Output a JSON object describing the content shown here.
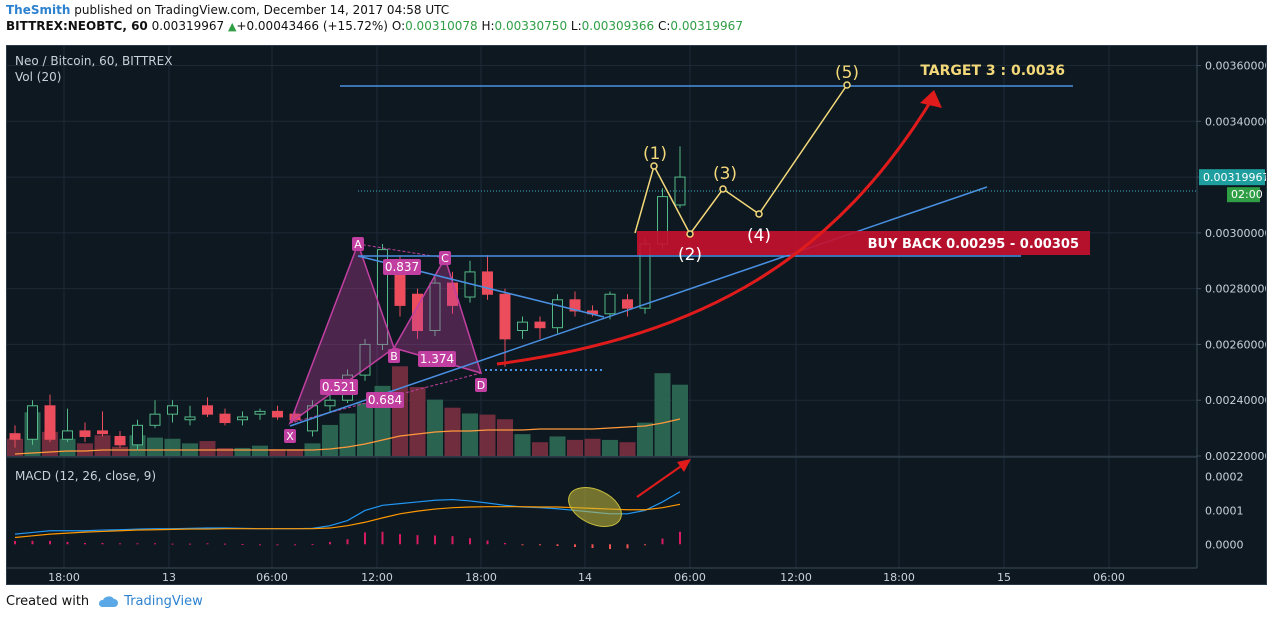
{
  "header": {
    "user": "TheSmith",
    "published": " published on TradingView.com, December 14, 2017 04:58 UTC",
    "symbol": "BITTREX:NEOBTC, 60",
    "last": "0.00319967",
    "change": "+0.00043466 (+15.72%)",
    "o_label": "O:",
    "o": "0.00310078",
    "h_label": "H:",
    "h": "0.00330750",
    "l_label": "L:",
    "l": "0.00309366",
    "c_label": "C:",
    "c": "0.00319967"
  },
  "legend": {
    "title": "Neo / Bitcoin, 60, BITTREX",
    "vol": "Vol (20)",
    "macd": "MACD (12, 26, close, 9)"
  },
  "colors": {
    "background": "#0e1821",
    "up": "#53b987",
    "down": "#eb4d5c",
    "pattern": "#c13fa0",
    "blue_line": "#4a90e2",
    "wave": "#f3d97a",
    "arrow": "#e01b1b",
    "buy_zone": "#c8102e",
    "macd_line": "#2196f3",
    "signal_line": "#ff9800"
  },
  "chart_data": {
    "type": "candlestick",
    "price_axis": [
      "0.00360000",
      "0.00340000",
      "0.00320000",
      "0.00300000",
      "0.00280000",
      "0.00260000",
      "0.00240000",
      "0.00220000"
    ],
    "price_range": [
      0.0022,
      0.00367
    ],
    "current_price_label": "0.00319967",
    "countdown_label": "02:00",
    "time_axis": [
      "18:00",
      "13",
      "06:00",
      "12:00",
      "18:00",
      "14",
      "06:00",
      "12:00",
      "18:00",
      "15",
      "06:00"
    ],
    "candles": [
      {
        "o": 0.00228,
        "h": 0.00231,
        "l": 0.00223,
        "c": 0.00226
      },
      {
        "o": 0.00226,
        "h": 0.0024,
        "l": 0.00224,
        "c": 0.00238
      },
      {
        "o": 0.00238,
        "h": 0.00242,
        "l": 0.00225,
        "c": 0.00226
      },
      {
        "o": 0.00226,
        "h": 0.00237,
        "l": 0.00225,
        "c": 0.00229
      },
      {
        "o": 0.00229,
        "h": 0.00232,
        "l": 0.00225,
        "c": 0.00227
      },
      {
        "o": 0.00229,
        "h": 0.00236,
        "l": 0.00227,
        "c": 0.00228
      },
      {
        "o": 0.00227,
        "h": 0.00229,
        "l": 0.00223,
        "c": 0.00224
      },
      {
        "o": 0.00224,
        "h": 0.00233,
        "l": 0.00222,
        "c": 0.00231
      },
      {
        "o": 0.00231,
        "h": 0.0024,
        "l": 0.0023,
        "c": 0.00235
      },
      {
        "o": 0.00235,
        "h": 0.0024,
        "l": 0.00232,
        "c": 0.00238
      },
      {
        "o": 0.00233,
        "h": 0.00238,
        "l": 0.00231,
        "c": 0.00234
      },
      {
        "o": 0.00238,
        "h": 0.00241,
        "l": 0.00234,
        "c": 0.00235
      },
      {
        "o": 0.00235,
        "h": 0.00237,
        "l": 0.00231,
        "c": 0.00232
      },
      {
        "o": 0.00233,
        "h": 0.00236,
        "l": 0.00231,
        "c": 0.00234
      },
      {
        "o": 0.00235,
        "h": 0.00237,
        "l": 0.00233,
        "c": 0.00236
      },
      {
        "o": 0.00236,
        "h": 0.00238,
        "l": 0.00233,
        "c": 0.00234
      },
      {
        "o": 0.00235,
        "h": 0.00236,
        "l": 0.00232,
        "c": 0.00233
      },
      {
        "o": 0.00229,
        "h": 0.0024,
        "l": 0.00227,
        "c": 0.00238
      },
      {
        "o": 0.00238,
        "h": 0.00247,
        "l": 0.00236,
        "c": 0.0024
      },
      {
        "o": 0.0024,
        "h": 0.00251,
        "l": 0.00239,
        "c": 0.00249
      },
      {
        "o": 0.00249,
        "h": 0.00262,
        "l": 0.00247,
        "c": 0.0026
      },
      {
        "o": 0.0026,
        "h": 0.00296,
        "l": 0.00258,
        "c": 0.00294
      },
      {
        "o": 0.0029,
        "h": 0.00292,
        "l": 0.0027,
        "c": 0.00274
      },
      {
        "o": 0.00278,
        "h": 0.0028,
        "l": 0.00262,
        "c": 0.00265
      },
      {
        "o": 0.00265,
        "h": 0.00284,
        "l": 0.00263,
        "c": 0.00282
      },
      {
        "o": 0.00282,
        "h": 0.00286,
        "l": 0.00271,
        "c": 0.00274
      },
      {
        "o": 0.00277,
        "h": 0.0029,
        "l": 0.00275,
        "c": 0.00286
      },
      {
        "o": 0.00286,
        "h": 0.00292,
        "l": 0.00276,
        "c": 0.00278
      },
      {
        "o": 0.00278,
        "h": 0.0028,
        "l": 0.00252,
        "c": 0.00262
      },
      {
        "o": 0.00265,
        "h": 0.0027,
        "l": 0.00262,
        "c": 0.00268
      },
      {
        "o": 0.00268,
        "h": 0.0027,
        "l": 0.00262,
        "c": 0.00266
      },
      {
        "o": 0.00266,
        "h": 0.00278,
        "l": 0.00264,
        "c": 0.00276
      },
      {
        "o": 0.00276,
        "h": 0.00279,
        "l": 0.0027,
        "c": 0.00272
      },
      {
        "o": 0.00272,
        "h": 0.00274,
        "l": 0.0027,
        "c": 0.00271
      },
      {
        "o": 0.00271,
        "h": 0.00279,
        "l": 0.00269,
        "c": 0.00278
      },
      {
        "o": 0.00276,
        "h": 0.00278,
        "l": 0.0027,
        "c": 0.00273
      },
      {
        "o": 0.00273,
        "h": 0.00298,
        "l": 0.00271,
        "c": 0.00296
      },
      {
        "o": 0.00296,
        "h": 0.00316,
        "l": 0.00294,
        "c": 0.00313
      },
      {
        "o": 0.0031,
        "h": 0.00331,
        "l": 0.00309,
        "c": 0.0032
      }
    ],
    "volume": [
      0.15,
      0.38,
      0.21,
      0.15,
      0.11,
      0.18,
      0.08,
      0.18,
      0.16,
      0.15,
      0.11,
      0.13,
      0.07,
      0.07,
      0.09,
      0.06,
      0.06,
      0.11,
      0.27,
      0.37,
      0.46,
      0.61,
      0.78,
      0.6,
      0.49,
      0.42,
      0.37,
      0.36,
      0.32,
      0.19,
      0.12,
      0.17,
      0.14,
      0.15,
      0.14,
      0.12,
      0.29,
      0.72,
      0.62
    ],
    "annotations": {
      "target_text": "TARGET 3 : 0.0036",
      "buy_back_text": "BUY BACK 0.00295 - 0.00305",
      "pattern_points": [
        "X",
        "A",
        "B",
        "C",
        "D"
      ],
      "ratios": [
        "0.521",
        "0.837",
        "1.374",
        "0.684"
      ],
      "waves": [
        "(1)",
        "(2)",
        "(3)",
        "(4)",
        "(5)"
      ]
    },
    "macd_axis": [
      "0.0002",
      "0.0001",
      "0.0000"
    ],
    "macd_range": [
      -7e-05,
      0.00024
    ]
  },
  "footer": {
    "created_with": "Created with",
    "brand": "TradingView"
  }
}
